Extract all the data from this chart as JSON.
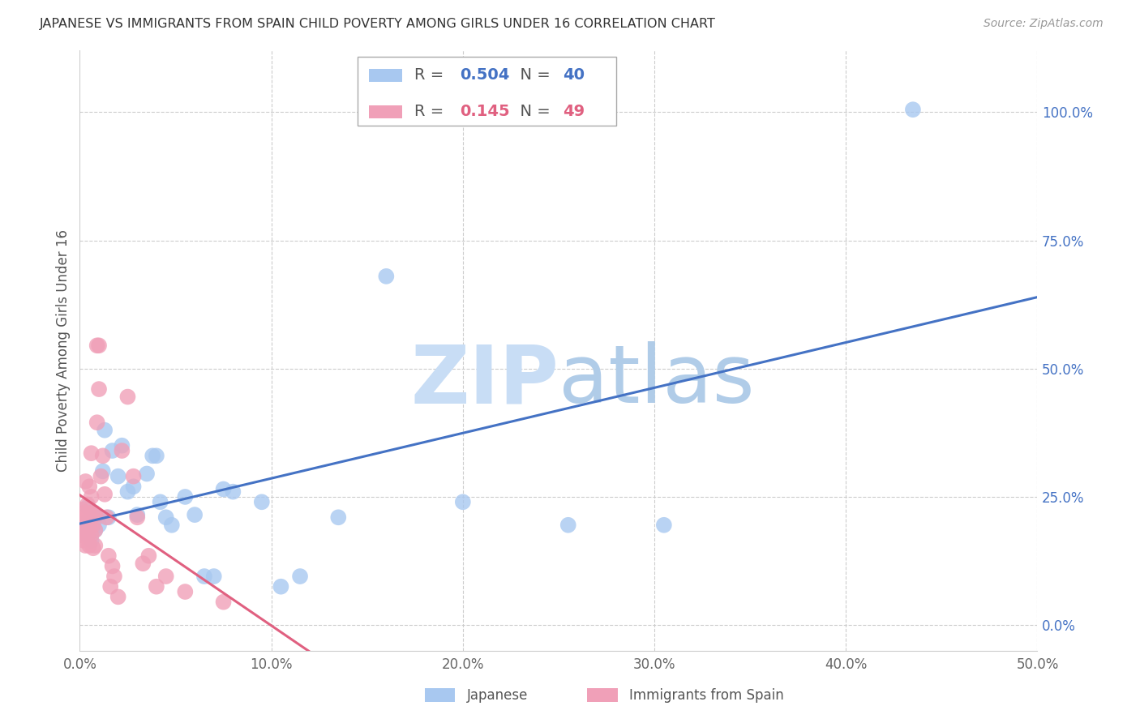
{
  "title": "JAPANESE VS IMMIGRANTS FROM SPAIN CHILD POVERTY AMONG GIRLS UNDER 16 CORRELATION CHART",
  "source": "Source: ZipAtlas.com",
  "ylabel": "Child Poverty Among Girls Under 16",
  "xlim": [
    0.0,
    0.5
  ],
  "ylim": [
    -0.05,
    1.12
  ],
  "xticks": [
    0.0,
    0.1,
    0.2,
    0.3,
    0.4,
    0.5
  ],
  "xticklabels": [
    "0.0%",
    "10.0%",
    "20.0%",
    "30.0%",
    "40.0%",
    "50.0%"
  ],
  "yticks_right": [
    0.0,
    0.25,
    0.5,
    0.75,
    1.0
  ],
  "yticklabels_right": [
    "0.0%",
    "25.0%",
    "50.0%",
    "75.0%",
    "100.0%"
  ],
  "japanese_R": 0.504,
  "japanese_N": 40,
  "spain_R": 0.145,
  "spain_N": 49,
  "japanese_color": "#A8C8F0",
  "spain_color": "#F0A0B8",
  "japanese_line_color": "#4472C4",
  "spain_line_color": "#E06080",
  "background_color": "#FFFFFF",
  "watermark": "ZIPatlas",
  "japanese_x": [
    0.002,
    0.003,
    0.004,
    0.004,
    0.005,
    0.006,
    0.007,
    0.008,
    0.009,
    0.01,
    0.012,
    0.013,
    0.015,
    0.017,
    0.02,
    0.022,
    0.025,
    0.028,
    0.03,
    0.035,
    0.038,
    0.04,
    0.042,
    0.045,
    0.048,
    0.055,
    0.06,
    0.065,
    0.07,
    0.075,
    0.08,
    0.095,
    0.105,
    0.115,
    0.135,
    0.16,
    0.2,
    0.255,
    0.305,
    0.435
  ],
  "japanese_y": [
    0.185,
    0.2,
    0.175,
    0.23,
    0.195,
    0.165,
    0.22,
    0.185,
    0.21,
    0.195,
    0.3,
    0.38,
    0.21,
    0.34,
    0.29,
    0.35,
    0.26,
    0.27,
    0.215,
    0.295,
    0.33,
    0.33,
    0.24,
    0.21,
    0.195,
    0.25,
    0.215,
    0.095,
    0.095,
    0.265,
    0.26,
    0.24,
    0.075,
    0.095,
    0.21,
    0.68,
    0.24,
    0.195,
    0.195,
    1.005
  ],
  "spain_x": [
    0.001,
    0.001,
    0.002,
    0.002,
    0.002,
    0.003,
    0.003,
    0.003,
    0.003,
    0.004,
    0.004,
    0.004,
    0.005,
    0.005,
    0.005,
    0.005,
    0.006,
    0.006,
    0.006,
    0.006,
    0.007,
    0.007,
    0.007,
    0.008,
    0.008,
    0.008,
    0.009,
    0.009,
    0.01,
    0.01,
    0.011,
    0.012,
    0.013,
    0.014,
    0.015,
    0.016,
    0.017,
    0.018,
    0.02,
    0.022,
    0.025,
    0.028,
    0.03,
    0.033,
    0.036,
    0.04,
    0.045,
    0.055,
    0.075
  ],
  "spain_y": [
    0.175,
    0.225,
    0.165,
    0.195,
    0.21,
    0.155,
    0.185,
    0.22,
    0.28,
    0.175,
    0.21,
    0.235,
    0.155,
    0.195,
    0.215,
    0.27,
    0.175,
    0.21,
    0.25,
    0.335,
    0.195,
    0.15,
    0.22,
    0.185,
    0.155,
    0.215,
    0.395,
    0.545,
    0.545,
    0.46,
    0.29,
    0.33,
    0.255,
    0.21,
    0.135,
    0.075,
    0.115,
    0.095,
    0.055,
    0.34,
    0.445,
    0.29,
    0.21,
    0.12,
    0.135,
    0.075,
    0.095,
    0.065,
    0.045
  ]
}
